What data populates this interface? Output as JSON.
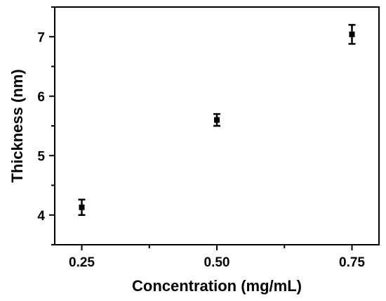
{
  "chart_data": {
    "type": "scatter",
    "title": "",
    "xlabel": "Concentration (mg/mL)",
    "ylabel": "Thickness (nm)",
    "xlim": [
      0.2,
      0.8
    ],
    "ylim": [
      3.5,
      7.5
    ],
    "x_ticks": [
      "0.25",
      "0.50",
      "0.75"
    ],
    "y_ticks": [
      "4",
      "5",
      "6",
      "7"
    ],
    "grid": false,
    "legend": "none",
    "error_bars": true,
    "series": [
      {
        "x": [
          0.25,
          0.5,
          0.75
        ],
        "y": [
          4.13,
          5.6,
          7.04
        ],
        "yerr": [
          0.13,
          0.1,
          0.16
        ],
        "color": "#000000"
      }
    ]
  }
}
